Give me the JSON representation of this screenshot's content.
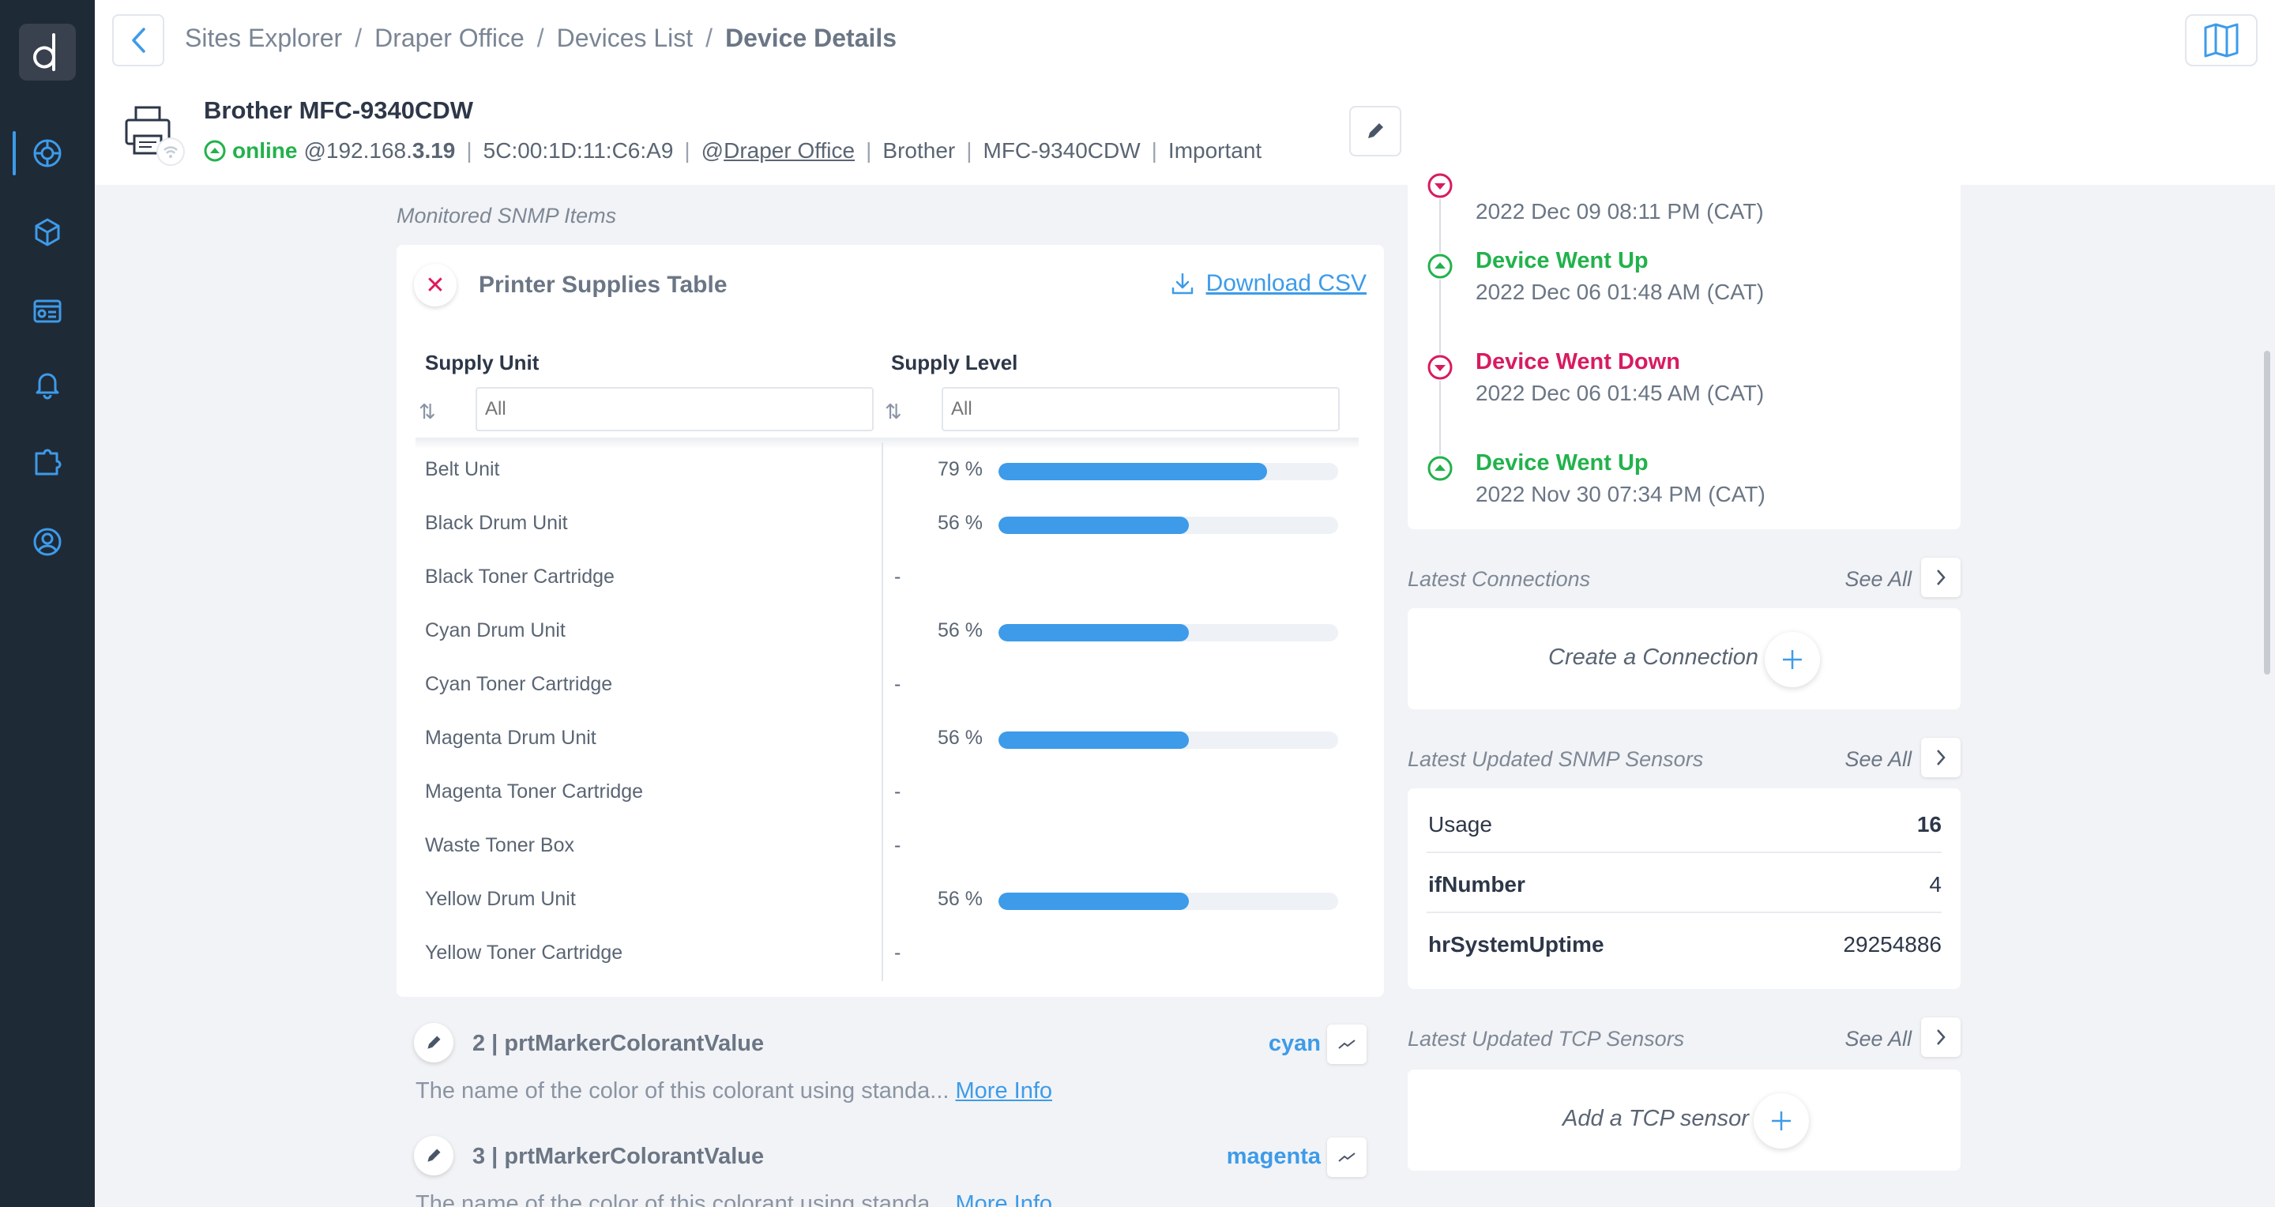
{
  "breadcrumb": [
    "Sites Explorer",
    "Draper Office",
    "Devices List",
    "Device Details"
  ],
  "device": {
    "name": "Brother MFC-9340CDW",
    "status": "online",
    "ip_prefix": "@192.168.",
    "ip_suffix": "3.19",
    "mac": "5C:00:1D:11:C6:A9",
    "site_at": "@",
    "site": "Draper Office",
    "vendor": "Brother",
    "model": "MFC-9340CDW",
    "importance": "Important"
  },
  "snmp": {
    "section_label": "Monitored SNMP Items",
    "supplies": {
      "title": "Printer Supplies Table",
      "download_label": "Download CSV",
      "col_unit": "Supply Unit",
      "col_level": "Supply Level",
      "filter_placeholder": "All",
      "rows": [
        {
          "unit": "Belt Unit",
          "level": "79 %",
          "value": 79
        },
        {
          "unit": "Black Drum Unit",
          "level": "56 %",
          "value": 56
        },
        {
          "unit": "Black Toner Cartridge",
          "level": "-",
          "value": null
        },
        {
          "unit": "Cyan Drum Unit",
          "level": "56 %",
          "value": 56
        },
        {
          "unit": "Cyan Toner Cartridge",
          "level": "-",
          "value": null
        },
        {
          "unit": "Magenta Drum Unit",
          "level": "56 %",
          "value": 56
        },
        {
          "unit": "Magenta Toner Cartridge",
          "level": "-",
          "value": null
        },
        {
          "unit": "Waste Toner Box",
          "level": "-",
          "value": null
        },
        {
          "unit": "Yellow Drum Unit",
          "level": "56 %",
          "value": 56
        },
        {
          "unit": "Yellow Toner Cartridge",
          "level": "-",
          "value": null
        }
      ]
    },
    "items": [
      {
        "title": "2 | prtMarkerColorantValue",
        "value": "cyan",
        "desc": "The name of the color of this colorant using standa...",
        "more": "More Info"
      },
      {
        "title": "3 | prtMarkerColorantValue",
        "value": "magenta",
        "desc": "The name of the color of this colorant using standa...",
        "more": "More Info"
      }
    ]
  },
  "events": [
    {
      "title": "",
      "date": "2022 Dec 09 08:11 PM (CAT)",
      "type": "down"
    },
    {
      "title": "Device Went Up",
      "date": "2022 Dec 06 01:48 AM (CAT)",
      "type": "up"
    },
    {
      "title": "Device Went Down",
      "date": "2022 Dec 06 01:45 AM (CAT)",
      "type": "down"
    },
    {
      "title": "Device Went Up",
      "date": "2022 Nov 30 07:34 PM (CAT)",
      "type": "up"
    }
  ],
  "connections": {
    "label": "Latest Connections",
    "see_all": "See All",
    "empty": "Create a Connection"
  },
  "snmp_sensors": {
    "label": "Latest Updated SNMP Sensors",
    "see_all": "See All",
    "rows": [
      {
        "name": "Usage",
        "value": "16"
      },
      {
        "name": "ifNumber",
        "value": "4"
      },
      {
        "name": "hrSystemUptime",
        "value": "29254886"
      }
    ]
  },
  "tcp_sensors": {
    "label": "Latest Updated TCP Sensors",
    "see_all": "See All",
    "empty": "Add a TCP sensor"
  },
  "colors": {
    "accent": "#3d9be9",
    "online": "#22b24c",
    "down": "#d81b60",
    "sidebar": "#1f2a37"
  },
  "icons": {
    "sidebar": [
      "network-globe-icon",
      "cubes-icon",
      "dashboard-icon",
      "bell-icon",
      "puzzle-icon",
      "user-circle-icon"
    ]
  }
}
